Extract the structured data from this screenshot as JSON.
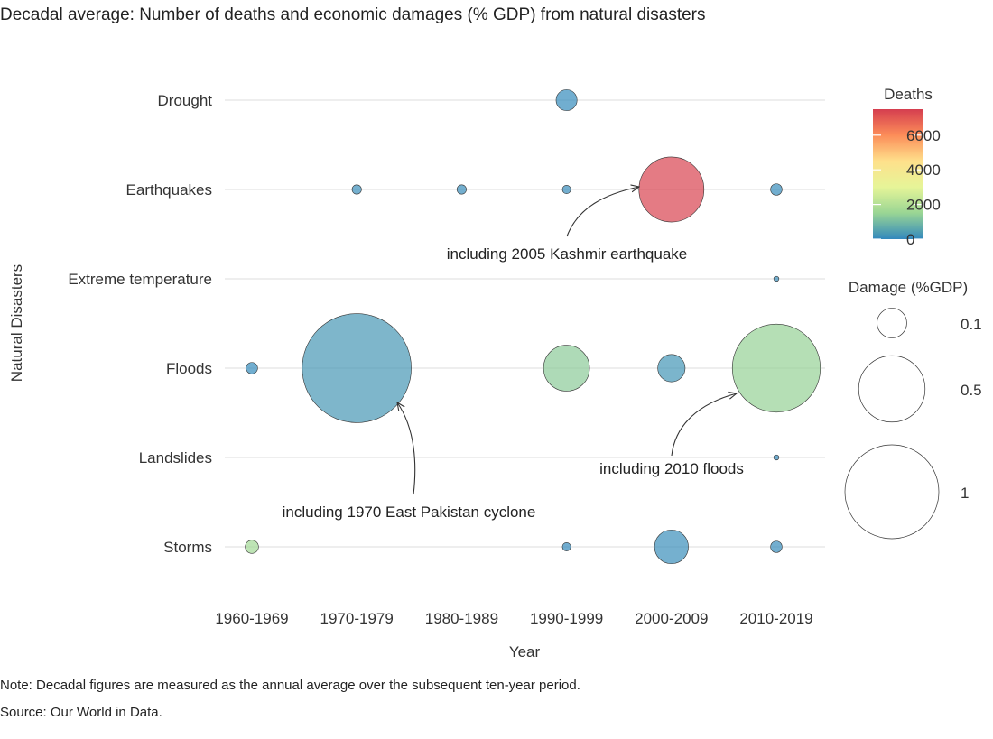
{
  "chart_data": {
    "type": "scatter",
    "title": "Decadal average: Number of deaths and economic damages (% GDP) from natural disasters",
    "xlabel": "Year",
    "ylabel": "Natural Disasters",
    "categories_x": [
      "1960-1969",
      "1970-1979",
      "1980-1989",
      "1990-1999",
      "2000-2009",
      "2010-2019"
    ],
    "categories_y": [
      "Drought",
      "Earthquakes",
      "Extreme temperature",
      "Floods",
      "Landslides",
      "Storms"
    ],
    "points": [
      {
        "disaster": "Drought",
        "decade": "1990-1999",
        "deaths": 50,
        "damage": 0.05
      },
      {
        "disaster": "Earthquakes",
        "decade": "1970-1979",
        "deaths": 120,
        "damage": 0.01
      },
      {
        "disaster": "Earthquakes",
        "decade": "1980-1989",
        "deaths": 100,
        "damage": 0.01
      },
      {
        "disaster": "Earthquakes",
        "decade": "1990-1999",
        "deaths": 80,
        "damage": 0.008
      },
      {
        "disaster": "Earthquakes",
        "decade": "2000-2009",
        "deaths": 7400,
        "damage": 0.48
      },
      {
        "disaster": "Earthquakes",
        "decade": "2010-2019",
        "deaths": 60,
        "damage": 0.015
      },
      {
        "disaster": "Extreme temperature",
        "decade": "2010-2019",
        "deaths": 120,
        "damage": 0.003
      },
      {
        "disaster": "Floods",
        "decade": "1960-1969",
        "deaths": 50,
        "damage": 0.015
      },
      {
        "disaster": "Floods",
        "decade": "1970-1979",
        "deaths": 300,
        "damage": 1.35
      },
      {
        "disaster": "Floods",
        "decade": "1990-1999",
        "deaths": 1300,
        "damage": 0.24
      },
      {
        "disaster": "Floods",
        "decade": "2000-2009",
        "deaths": 250,
        "damage": 0.085
      },
      {
        "disaster": "Floods",
        "decade": "2010-2019",
        "deaths": 1450,
        "damage": 0.88
      },
      {
        "disaster": "Landslides",
        "decade": "2010-2019",
        "deaths": 40,
        "damage": 0.003
      },
      {
        "disaster": "Storms",
        "decade": "1960-1969",
        "deaths": 1700,
        "damage": 0.02
      },
      {
        "disaster": "Storms",
        "decade": "1990-1999",
        "deaths": 40,
        "damage": 0.008
      },
      {
        "disaster": "Storms",
        "decade": "2000-2009",
        "deaths": 120,
        "damage": 0.13
      },
      {
        "disaster": "Storms",
        "decade": "2010-2019",
        "deaths": 80,
        "damage": 0.015
      }
    ],
    "annotations": [
      {
        "text": "including 2005 Kashmir earthquake",
        "target_disaster": "Earthquakes",
        "target_decade": "2000-2009"
      },
      {
        "text": "including 2010 floods",
        "target_disaster": "Floods",
        "target_decade": "2010-2019"
      },
      {
        "text": "including 1970 East Pakistan cyclone",
        "target_disaster": "Floods",
        "target_decade": "1970-1979"
      }
    ],
    "color_legend": {
      "title": "Deaths",
      "range": [
        0,
        7500
      ],
      "ticks": [
        0,
        2000,
        4000,
        6000
      ],
      "colors": [
        "#3288bd",
        "#99d594",
        "#e6f598",
        "#fee08b",
        "#fc8d59",
        "#d53e4f"
      ]
    },
    "size_legend": {
      "title": "Damage (%GDP)",
      "values": [
        0.1,
        0.5,
        1
      ],
      "labels": [
        "0.1",
        "0.5",
        "1"
      ]
    }
  },
  "notes": {
    "note": "Note: Decadal figures are measured as the annual average over the subsequent ten-year period.",
    "source": "Source: Our World in Data."
  }
}
